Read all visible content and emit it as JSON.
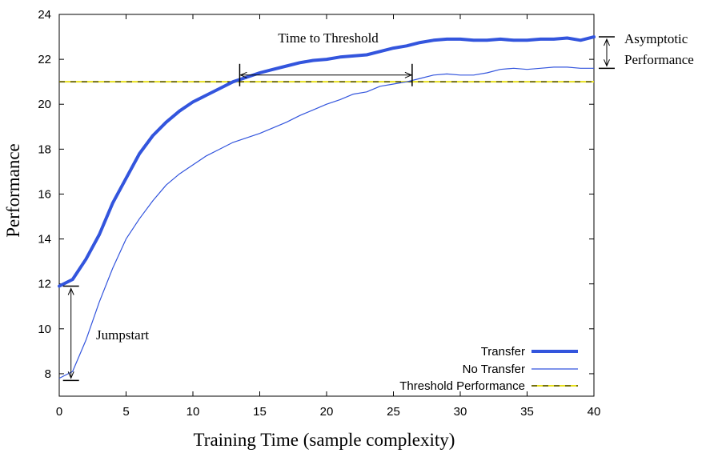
{
  "chart_data": {
    "type": "line",
    "xlabel": "Training Time (sample complexity)",
    "ylabel": "Performance",
    "xlim": [
      0,
      40
    ],
    "ylim": [
      7,
      24
    ],
    "xticks": [
      0,
      5,
      10,
      15,
      20,
      25,
      30,
      35,
      40
    ],
    "yticks": [
      8,
      10,
      12,
      14,
      16,
      18,
      20,
      22,
      24
    ],
    "grid": false,
    "legend_position": "bottom-right",
    "series": [
      {
        "name": "Transfer",
        "color": "#3355dd",
        "style": "thick",
        "x": [
          0,
          1,
          2,
          3,
          4,
          5,
          6,
          7,
          8,
          9,
          10,
          11,
          12,
          13,
          14,
          15,
          16,
          17,
          18,
          19,
          20,
          21,
          22,
          23,
          24,
          25,
          26,
          27,
          28,
          29,
          30,
          31,
          32,
          33,
          34,
          35,
          36,
          37,
          38,
          39,
          40
        ],
        "y": [
          11.9,
          12.2,
          13.1,
          14.2,
          15.6,
          16.7,
          17.8,
          18.6,
          19.2,
          19.7,
          20.1,
          20.4,
          20.7,
          21.0,
          21.2,
          21.4,
          21.55,
          21.7,
          21.85,
          21.95,
          22.0,
          22.1,
          22.15,
          22.2,
          22.35,
          22.5,
          22.6,
          22.75,
          22.85,
          22.9,
          22.9,
          22.85,
          22.85,
          22.9,
          22.85,
          22.85,
          22.9,
          22.9,
          22.95,
          22.85,
          23.0
        ]
      },
      {
        "name": "No Transfer",
        "color": "#3355dd",
        "style": "thin",
        "x": [
          0,
          1,
          2,
          3,
          4,
          5,
          6,
          7,
          8,
          9,
          10,
          11,
          12,
          13,
          14,
          15,
          16,
          17,
          18,
          19,
          20,
          21,
          22,
          23,
          24,
          25,
          26,
          27,
          28,
          29,
          30,
          31,
          32,
          33,
          34,
          35,
          36,
          37,
          38,
          39,
          40
        ],
        "y": [
          7.8,
          8.1,
          9.5,
          11.2,
          12.7,
          14.0,
          14.9,
          15.7,
          16.4,
          16.9,
          17.3,
          17.7,
          18.0,
          18.3,
          18.5,
          18.7,
          18.95,
          19.2,
          19.5,
          19.75,
          20.0,
          20.2,
          20.45,
          20.55,
          20.8,
          20.9,
          21.0,
          21.15,
          21.3,
          21.35,
          21.3,
          21.3,
          21.4,
          21.55,
          21.6,
          21.55,
          21.6,
          21.65,
          21.65,
          21.6,
          21.6
        ]
      },
      {
        "name": "Threshold Performance",
        "color": "#e8e020",
        "dash_color": "#000000",
        "style": "dashed",
        "x": [
          0,
          40
        ],
        "y": [
          21,
          21
        ]
      }
    ],
    "annotations": [
      {
        "text": "Time to Threshold",
        "type": "h-range",
        "x1": 13.5,
        "x2": 26.4,
        "y": 20.8
      },
      {
        "text": "Asymptotic",
        "text2": "Performance",
        "type": "v-range",
        "x": 41,
        "y1": 21.6,
        "y2": 23.0
      },
      {
        "text": "Jumpstart",
        "type": "v-range",
        "x": 1,
        "y1": 7.7,
        "y2": 11.9
      }
    ]
  }
}
